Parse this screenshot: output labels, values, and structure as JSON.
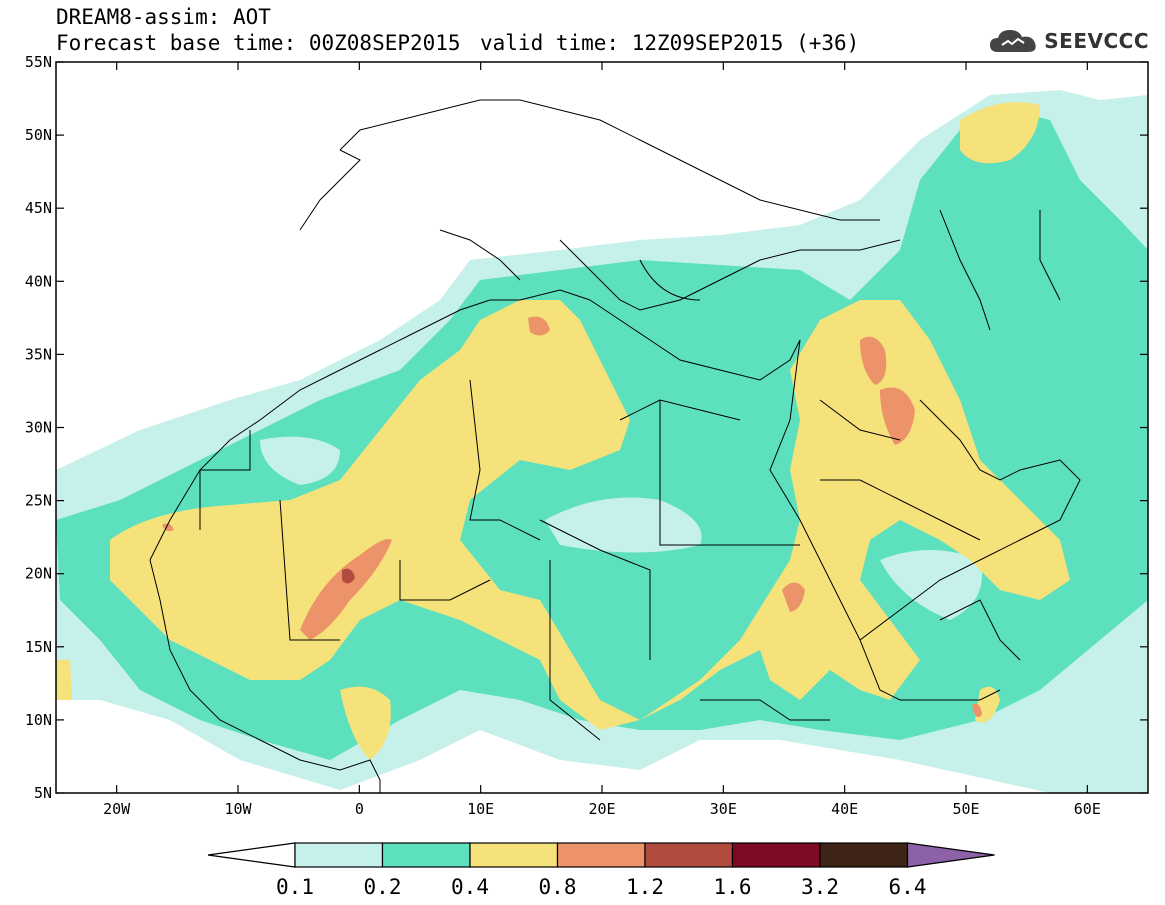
{
  "header": {
    "title": "DREAM8-assim: AOT",
    "base_time": "Forecast base time: 00Z08SEP2015",
    "valid_time": "valid time: 12Z09SEP2015 (+36)",
    "logo_text": "SEEVCCC",
    "logo_icon": "cloud-icon"
  },
  "map": {
    "lat_range": [
      5,
      55
    ],
    "lon_range": [
      -25,
      65
    ],
    "lat_ticks": [
      "5N",
      "10N",
      "15N",
      "20N",
      "25N",
      "30N",
      "35N",
      "40N",
      "45N",
      "50N",
      "55N"
    ],
    "lon_ticks": [
      "20W",
      "10W",
      "0",
      "10E",
      "20E",
      "30E",
      "40E",
      "50E",
      "60E"
    ],
    "ocean_color": "#ffffff"
  },
  "colorbar": {
    "levels": [
      "0.1",
      "0.2",
      "0.4",
      "0.8",
      "1.2",
      "1.6",
      "3.2",
      "6.4"
    ],
    "colors": [
      "#c6f0ea",
      "#5ce0be",
      "#f5e27a",
      "#ec936a",
      "#b24b3f",
      "#7e0a24",
      "#3d2416",
      "#8b62a8"
    ]
  }
}
